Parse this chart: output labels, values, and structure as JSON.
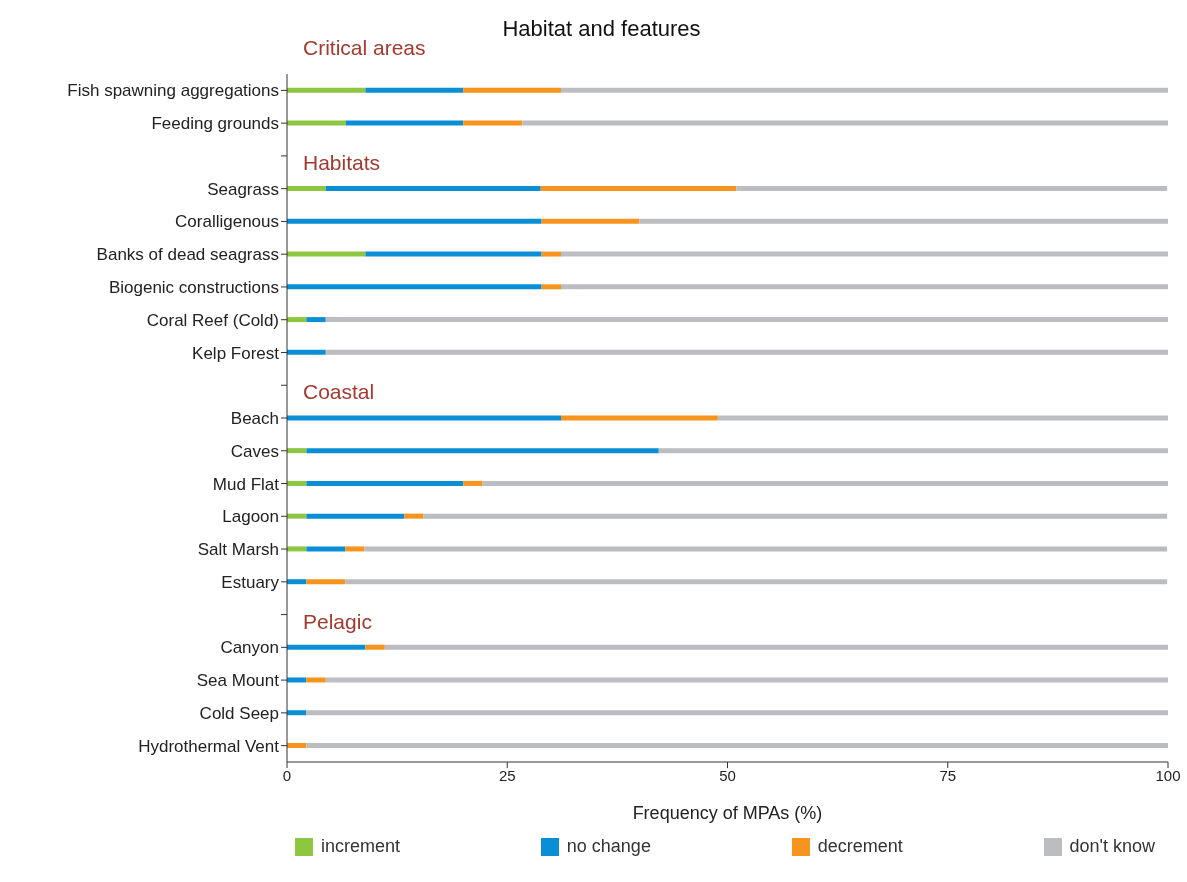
{
  "chart_data": {
    "type": "bar",
    "orientation": "horizontal",
    "stacked": true,
    "title": "Habitat and features",
    "xlabel": "Frequency of MPAs (%)",
    "categories": [
      "Fish spawning aggregations",
      "Feeding grounds",
      null,
      "Seagrass",
      "Coralligenous",
      "Banks of dead seagrass",
      "Biogenic constructions",
      "Coral Reef (Cold)",
      "Kelp Forest",
      null,
      "Beach",
      "Caves",
      "Mud Flat",
      "Lagoon",
      "Salt Marsh",
      "Estuary",
      null,
      "Canyon",
      "Sea Mount",
      "Cold Seep",
      "Hydrothermal Vent"
    ],
    "series": [
      {
        "name": "increment",
        "color": "#8dc63f",
        "values": [
          8.9,
          6.7,
          null,
          4.4,
          0,
          8.9,
          0,
          2.2,
          0,
          null,
          0,
          2.2,
          2.2,
          2.2,
          2.2,
          0,
          null,
          0,
          0,
          0,
          0
        ]
      },
      {
        "name": "no change",
        "color": "#0a8fd6",
        "values": [
          11.1,
          13.3,
          null,
          24.4,
          28.9,
          20,
          28.9,
          2.2,
          4.4,
          null,
          31.1,
          40,
          17.8,
          11.1,
          4.4,
          2.2,
          null,
          8.9,
          2.2,
          2.2,
          0
        ]
      },
      {
        "name": "decrement",
        "color": "#f7941d",
        "values": [
          11.1,
          6.7,
          null,
          22.2,
          11.1,
          2.2,
          2.2,
          0,
          0,
          null,
          17.8,
          0,
          2.2,
          2.2,
          2.2,
          4.4,
          null,
          2.2,
          2.2,
          0,
          2.2
        ]
      },
      {
        "name": "don't know",
        "color": "#bcbdc0",
        "values": [
          68.9,
          73.3,
          null,
          48.9,
          60,
          68.9,
          68.9,
          95.6,
          95.6,
          null,
          51.1,
          57.8,
          77.8,
          84.4,
          91.1,
          93.3,
          null,
          88.9,
          95.6,
          97.8,
          97.8
        ]
      }
    ],
    "xlim": [
      0,
      100
    ],
    "xticks": [
      0,
      25,
      50,
      75,
      100
    ],
    "grid": false,
    "legend": "bottom",
    "annotations": [
      "Critical areas",
      "Habitats",
      "Coastal",
      "Pelagic"
    ]
  }
}
